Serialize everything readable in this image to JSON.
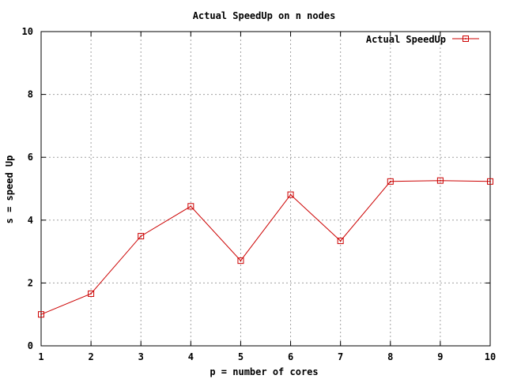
{
  "chart_data": {
    "type": "line",
    "title": "Actual SpeedUp on n nodes",
    "xlabel": "p = number of cores",
    "ylabel": "s = speed Up",
    "xlim": [
      1,
      10
    ],
    "ylim": [
      0,
      10
    ],
    "x_ticks": [
      1,
      2,
      3,
      4,
      5,
      6,
      7,
      8,
      9,
      10
    ],
    "y_ticks": [
      0,
      2,
      4,
      6,
      8,
      10
    ],
    "grid": true,
    "legend_position": "top-right",
    "series": [
      {
        "name": "Actual SpeedUp",
        "color": "#cc0000",
        "marker": "square-with-dot",
        "x": [
          1,
          2,
          3,
          4,
          5,
          6,
          7,
          8,
          9,
          10
        ],
        "y": [
          1.0,
          1.66,
          3.49,
          4.44,
          2.71,
          4.81,
          3.34,
          5.23,
          5.26,
          5.23
        ]
      }
    ]
  }
}
